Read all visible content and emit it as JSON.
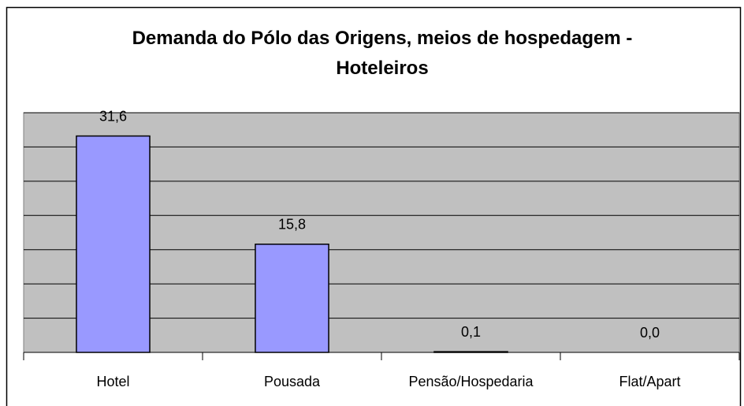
{
  "chart_data": {
    "type": "bar",
    "title": "Demanda do Pólo das Origens, meios de hospedagem - Hoteleiros",
    "categories": [
      "Hotel",
      "Pousada",
      "Pensão/Hospedaria",
      "Flat/Apart"
    ],
    "values": [
      31.6,
      15.8,
      0.1,
      0.0
    ],
    "value_labels": [
      "31,6",
      "15,8",
      "0,1",
      "0,0"
    ],
    "color": "#9999ff",
    "ylim": [
      0,
      35
    ],
    "yticks": [
      0,
      5,
      10,
      15,
      20,
      25,
      30,
      35
    ],
    "grid": true
  }
}
